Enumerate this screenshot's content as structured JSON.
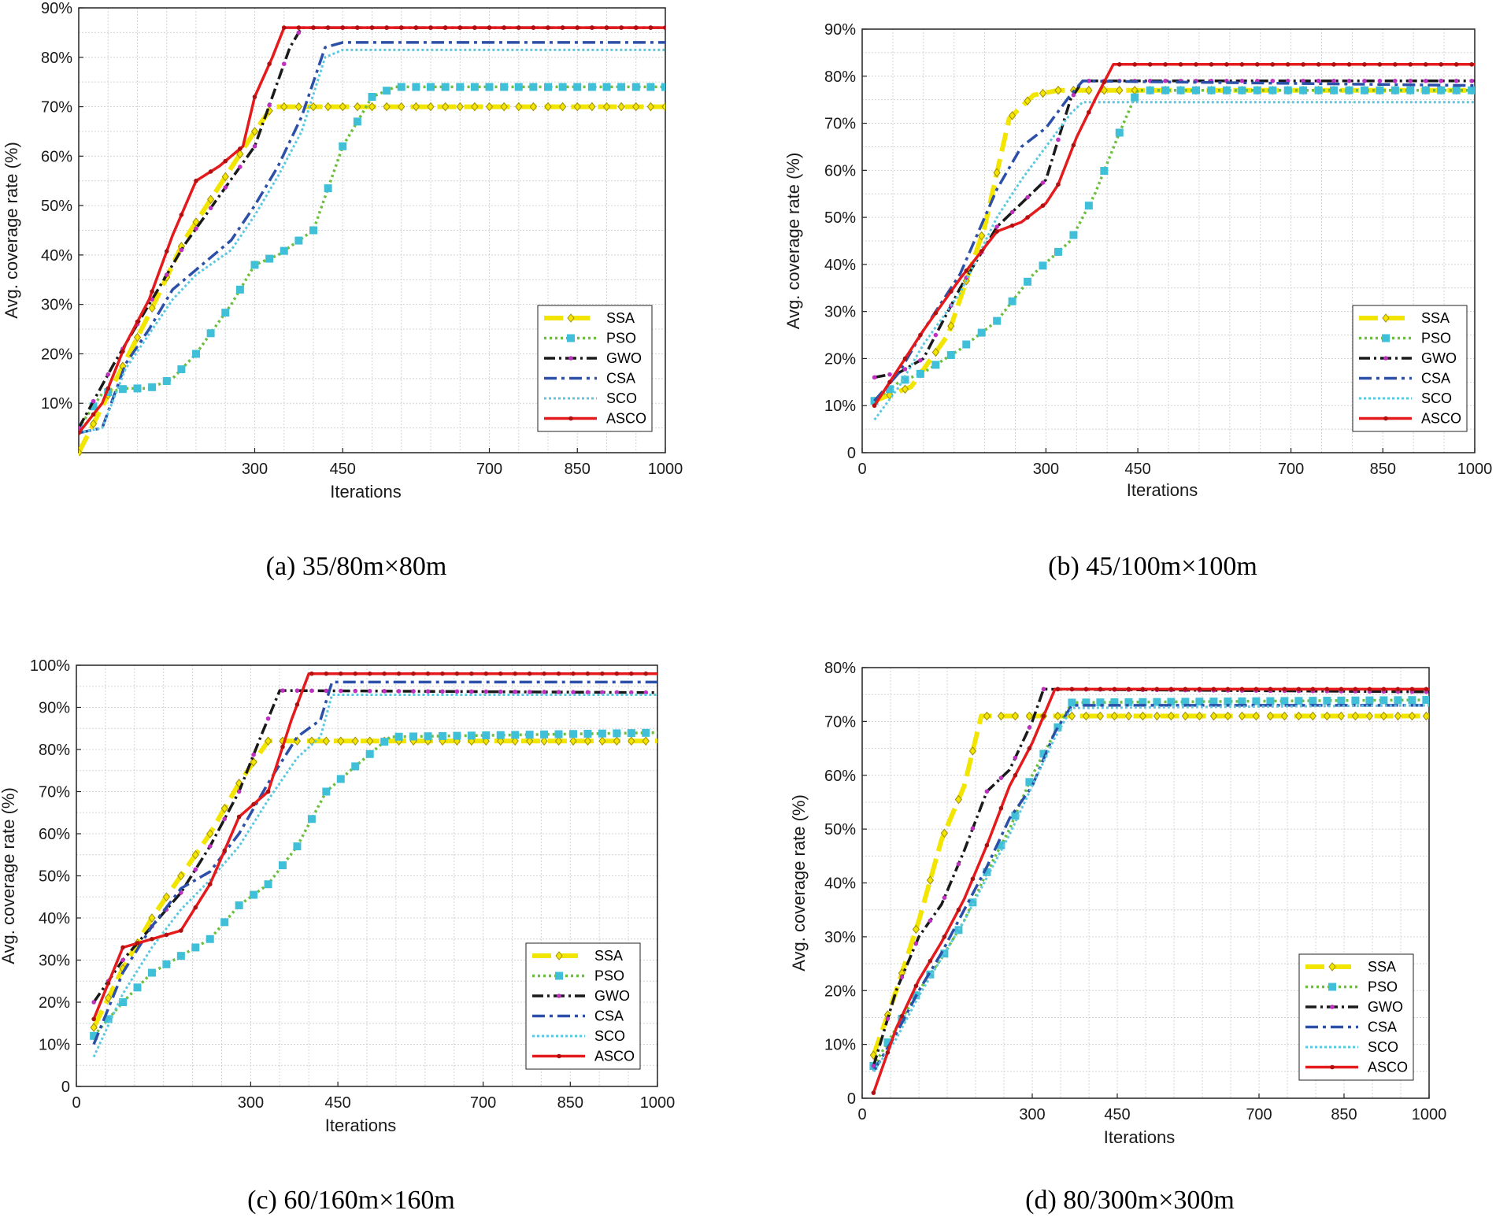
{
  "figure": {
    "ylabel": "Avg. coverage rate (%)",
    "xlabel": "Iterations"
  },
  "series_styles": {
    "SSA": {
      "color": "#f2e600",
      "dash": "24 10",
      "width": 6,
      "marker": "diamond"
    },
    "PSO": {
      "color": "#6bbf3a",
      "dash": "3 4",
      "width": 3.5,
      "marker": "square",
      "marker_color": "#40c0d8"
    },
    "GWO": {
      "color": "#1a1a1a",
      "dash": "14 5 3 5",
      "width": 3.5,
      "marker": "dot",
      "marker_color": "#c030c0"
    },
    "CSA": {
      "color": "#2c4fa8",
      "dash": "16 6 4 6",
      "width": 3.5,
      "marker": "none"
    },
    "SCO": {
      "color": "#5cc8e0",
      "dash": "3 3",
      "width": 3,
      "marker": "none"
    },
    "ASCO": {
      "color": "#e41a1c",
      "dash": "",
      "width": 3.5,
      "marker": "dot",
      "marker_color": "#b01010"
    }
  },
  "chart_data": [
    {
      "type": "line",
      "caption": "(a) 35/80m×80m",
      "xlabel": "Iterations",
      "ylabel": "Avg. coverage rate (%)",
      "xlim": [
        0,
        1000
      ],
      "ylim": [
        0,
        90
      ],
      "xticks": [
        300,
        450,
        700,
        850,
        1000
      ],
      "yticks": [
        10,
        20,
        30,
        40,
        50,
        60,
        70,
        80,
        90
      ],
      "ytick_labels": [
        "10%",
        "20%",
        "30%",
        "40%",
        "50%",
        "60%",
        "70%",
        "80%",
        "90%"
      ],
      "legend": [
        "SSA",
        "PSO",
        "GWO",
        "CSA",
        "SCO",
        "ASCO"
      ],
      "series": [
        {
          "name": "SSA",
          "x": [
            0,
            60,
            120,
            180,
            240,
            300,
            330,
            1000
          ],
          "values": [
            0,
            14,
            28,
            43,
            54,
            65,
            70,
            70
          ]
        },
        {
          "name": "PSO",
          "x": [
            0,
            40,
            80,
            120,
            160,
            200,
            260,
            300,
            340,
            400,
            450,
            500,
            540,
            1000
          ],
          "values": [
            5,
            12,
            13,
            13,
            15,
            20,
            30,
            38,
            40,
            45,
            62,
            72,
            74,
            74
          ]
        },
        {
          "name": "GWO",
          "x": [
            0,
            60,
            120,
            180,
            240,
            300,
            330,
            360,
            380,
            1000
          ],
          "values": [
            5,
            18,
            30,
            42,
            52,
            62,
            72,
            82,
            86,
            86
          ]
        },
        {
          "name": "CSA",
          "x": [
            0,
            40,
            80,
            120,
            160,
            200,
            260,
            300,
            340,
            380,
            420,
            450,
            1000
          ],
          "values": [
            4,
            5,
            18,
            25,
            33,
            37,
            43,
            50,
            58,
            68,
            82,
            83,
            83
          ]
        },
        {
          "name": "SCO",
          "x": [
            0,
            40,
            80,
            120,
            160,
            200,
            260,
            300,
            340,
            380,
            420,
            450,
            1000
          ],
          "values": [
            4,
            5,
            17,
            24,
            31,
            36,
            41,
            48,
            56,
            65,
            80,
            81.5,
            81.5
          ]
        },
        {
          "name": "ASCO",
          "x": [
            0,
            40,
            80,
            120,
            160,
            200,
            240,
            280,
            300,
            330,
            350,
            1000
          ],
          "values": [
            4,
            10,
            22,
            31,
            44,
            55,
            58,
            62,
            72,
            80,
            86,
            86
          ]
        }
      ]
    },
    {
      "type": "line",
      "caption": "(b) 45/100m×100m",
      "xlabel": "Iterations",
      "ylabel": "Avg. coverage rate (%)",
      "xlim": [
        0,
        1000
      ],
      "ylim": [
        0,
        90
      ],
      "xticks": [
        0,
        300,
        450,
        700,
        850,
        1000
      ],
      "yticks": [
        0,
        10,
        20,
        30,
        40,
        50,
        60,
        70,
        80,
        90
      ],
      "ytick_labels": [
        "0",
        "10%",
        "20%",
        "30%",
        "40%",
        "50%",
        "60%",
        "70%",
        "80%",
        "90%"
      ],
      "legend": [
        "SSA",
        "PSO",
        "GWO",
        "CSA",
        "SCO",
        "ASCO"
      ],
      "series": [
        {
          "name": "SSA",
          "x": [
            20,
            80,
            140,
            200,
            240,
            280,
            320,
            1000
          ],
          "values": [
            11,
            14,
            25,
            48,
            71,
            76,
            77,
            77
          ]
        },
        {
          "name": "PSO",
          "x": [
            20,
            60,
            100,
            160,
            220,
            280,
            340,
            380,
            420,
            450,
            1000
          ],
          "values": [
            11,
            15,
            17,
            22,
            28,
            38,
            45,
            55,
            68,
            77,
            77
          ]
        },
        {
          "name": "GWO",
          "x": [
            20,
            60,
            100,
            160,
            220,
            260,
            300,
            340,
            360,
            1000
          ],
          "values": [
            16,
            17,
            20,
            35,
            48,
            53,
            58,
            75,
            79,
            79
          ]
        },
        {
          "name": "CSA",
          "x": [
            20,
            60,
            100,
            160,
            220,
            260,
            300,
            340,
            360,
            1000
          ],
          "values": [
            11,
            17,
            26,
            38,
            56,
            65,
            69,
            76,
            79,
            78
          ]
        },
        {
          "name": "SCO",
          "x": [
            20,
            60,
            100,
            160,
            220,
            260,
            300,
            340,
            360,
            1000
          ],
          "values": [
            7,
            14,
            23,
            34,
            50,
            58,
            65,
            72,
            74.5,
            74.5
          ]
        },
        {
          "name": "ASCO",
          "x": [
            20,
            60,
            100,
            160,
            220,
            260,
            300,
            320,
            350,
            380,
            410,
            1000
          ],
          "values": [
            10,
            18,
            26,
            37,
            47,
            49,
            53,
            57,
            67,
            75,
            82.5,
            82.5
          ]
        }
      ]
    },
    {
      "type": "line",
      "caption": "(c) 60/160m×160m",
      "xlabel": "Iterations",
      "ylabel": "Avg. coverage rate (%)",
      "xlim": [
        0,
        1000
      ],
      "ylim": [
        0,
        100
      ],
      "xticks": [
        0,
        300,
        450,
        700,
        850,
        1000
      ],
      "yticks": [
        0,
        10,
        20,
        30,
        40,
        50,
        60,
        70,
        80,
        90,
        100
      ],
      "ytick_labels": [
        "0",
        "10%",
        "20%",
        "30%",
        "40%",
        "50%",
        "60%",
        "70%",
        "80%",
        "90%",
        "100%"
      ],
      "legend": [
        "SSA",
        "PSO",
        "GWO",
        "CSA",
        "SCO",
        "ASCO"
      ],
      "series": [
        {
          "name": "SSA",
          "x": [
            30,
            80,
            130,
            180,
            230,
            280,
            330,
            1000
          ],
          "values": [
            14,
            28,
            40,
            50,
            60,
            72,
            82,
            82
          ]
        },
        {
          "name": "PSO",
          "x": [
            30,
            80,
            130,
            180,
            230,
            280,
            330,
            380,
            430,
            480,
            540,
            1000
          ],
          "values": [
            12,
            20,
            27,
            31,
            35,
            43,
            48,
            57,
            70,
            76,
            83,
            84
          ]
        },
        {
          "name": "GWO",
          "x": [
            30,
            80,
            130,
            180,
            230,
            280,
            320,
            350,
            1000
          ],
          "values": [
            20,
            30,
            38,
            46,
            57,
            70,
            84,
            94,
            93.5
          ]
        },
        {
          "name": "CSA",
          "x": [
            30,
            80,
            130,
            180,
            230,
            280,
            330,
            380,
            420,
            440,
            1000
          ],
          "values": [
            10,
            27,
            38,
            47,
            51,
            60,
            72,
            83,
            87,
            96,
            96
          ]
        },
        {
          "name": "SCO",
          "x": [
            30,
            80,
            130,
            180,
            230,
            280,
            330,
            380,
            420,
            440,
            1000
          ],
          "values": [
            7,
            22,
            33,
            42,
            49,
            57,
            68,
            78,
            83,
            93,
            93
          ]
        },
        {
          "name": "ASCO",
          "x": [
            30,
            80,
            130,
            180,
            230,
            280,
            330,
            370,
            400,
            1000
          ],
          "values": [
            16,
            33,
            35,
            37,
            48,
            64,
            70,
            87,
            98,
            98
          ]
        }
      ]
    },
    {
      "type": "line",
      "caption": "(d) 80/300m×300m",
      "xlabel": "Iterations",
      "ylabel": "Avg. coverage rate (%)",
      "xlim": [
        0,
        1000
      ],
      "ylim": [
        0,
        80
      ],
      "xticks": [
        0,
        300,
        450,
        700,
        850,
        1000
      ],
      "yticks": [
        0,
        10,
        20,
        30,
        40,
        50,
        60,
        70,
        80
      ],
      "ytick_labels": [
        "0",
        "10%",
        "20%",
        "30%",
        "40%",
        "50%",
        "60%",
        "70%",
        "80%"
      ],
      "legend": [
        "SSA",
        "PSO",
        "GWO",
        "CSA",
        "SCO",
        "ASCO"
      ],
      "series": [
        {
          "name": "SSA",
          "x": [
            20,
            60,
            100,
            140,
            180,
            210,
            1000
          ],
          "values": [
            8,
            20,
            33,
            48,
            58,
            71,
            71
          ]
        },
        {
          "name": "PSO",
          "x": [
            20,
            60,
            100,
            140,
            180,
            220,
            260,
            300,
            340,
            370,
            1000
          ],
          "values": [
            6,
            13,
            20,
            26,
            33,
            42,
            50,
            60,
            68,
            73.5,
            74
          ]
        },
        {
          "name": "GWO",
          "x": [
            20,
            60,
            100,
            140,
            180,
            220,
            260,
            300,
            320,
            1000
          ],
          "values": [
            6,
            20,
            30,
            36,
            46,
            57,
            61,
            70,
            76,
            75.5
          ]
        },
        {
          "name": "CSA",
          "x": [
            20,
            60,
            100,
            140,
            180,
            220,
            260,
            300,
            340,
            370,
            1000
          ],
          "values": [
            5,
            12,
            20,
            27,
            35,
            43,
            52,
            58,
            68,
            73,
            73
          ]
        },
        {
          "name": "SCO",
          "x": [
            20,
            60,
            100,
            140,
            180,
            220,
            260,
            300,
            340,
            370,
            1000
          ],
          "values": [
            5,
            11,
            19,
            26,
            33,
            41,
            49,
            58,
            67,
            72.5,
            73
          ]
        },
        {
          "name": "ASCO",
          "x": [
            20,
            60,
            100,
            140,
            180,
            220,
            260,
            300,
            340,
            1000
          ],
          "values": [
            1,
            13,
            22,
            29,
            37,
            47,
            58,
            66,
            76,
            76
          ]
        }
      ]
    }
  ]
}
